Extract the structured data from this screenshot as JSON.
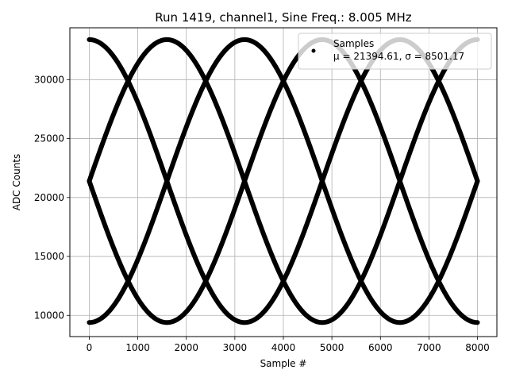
{
  "chart_data": {
    "type": "scatter",
    "title": "Run 1419, channel1, Sine Freq.: 8.005 MHz",
    "xlabel": "Sample #",
    "ylabel": "ADC Counts",
    "xlim": [
      -400,
      8400
    ],
    "ylim": [
      8200,
      34400
    ],
    "xticks": [
      0,
      1000,
      2000,
      3000,
      4000,
      5000,
      6000,
      7000,
      8000
    ],
    "yticks": [
      10000,
      15000,
      20000,
      25000,
      30000
    ],
    "grid": true,
    "legend": {
      "placement": "top-right",
      "entries": [
        "Samples"
      ],
      "stats_text": "μ = 21394.61, σ = 8501.17"
    },
    "series": [
      {
        "name": "Samples",
        "color": "#000000",
        "marker": "dot",
        "mean": 21394.61,
        "amplitude": 12000,
        "period_samples": 6400,
        "phases_deg": [
          0,
          90,
          180,
          270
        ],
        "x_range": [
          0,
          8000
        ]
      }
    ]
  }
}
